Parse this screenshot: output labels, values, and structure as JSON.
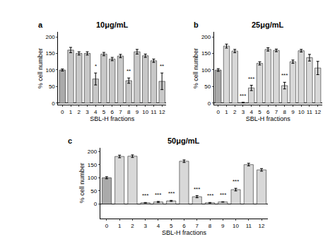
{
  "chart_data": [
    {
      "type": "bar",
      "title": "10μg/mL",
      "panel_label": "a",
      "xlabel": "SBL-H fractions",
      "ylabel": "% cell number",
      "categories": [
        "0",
        "1",
        "2",
        "3",
        "4",
        "5",
        "6",
        "7",
        "8",
        "9",
        "10",
        "11",
        "12"
      ],
      "values": [
        100,
        160,
        150,
        150,
        73,
        148,
        133,
        142,
        68,
        155,
        143,
        128,
        66
      ],
      "errors": [
        3,
        8,
        5,
        5,
        18,
        5,
        5,
        5,
        8,
        7,
        5,
        5,
        25
      ],
      "annotations": [
        {
          "category": "4",
          "text": "*"
        },
        {
          "category": "8",
          "text": "**"
        },
        {
          "category": "12",
          "text": "**"
        }
      ],
      "colors": [
        "#aaaaaa",
        "#c8c8c8",
        "#c8c8c8",
        "#c8c8c8",
        "#c8c8c8",
        "#c8c8c8",
        "#c8c8c8",
        "#c8c8c8",
        "#c8c8c8",
        "#c8c8c8",
        "#c8c8c8",
        "#c8c8c8",
        "#c8c8c8"
      ],
      "ylim": [
        -5,
        215
      ],
      "yticks": [
        0,
        50,
        100,
        150,
        200
      ],
      "grid": false
    },
    {
      "type": "bar",
      "title": "25μg/mL",
      "panel_label": "b",
      "xlabel": "SBL-H fractions",
      "ylabel": "% cell number",
      "categories": [
        "0",
        "1",
        "2",
        "3",
        "4",
        "5",
        "6",
        "7",
        "8",
        "9",
        "10",
        "11",
        "12"
      ],
      "values": [
        100,
        172,
        157,
        2,
        46,
        120,
        162,
        159,
        53,
        125,
        158,
        137,
        106
      ],
      "errors": [
        4,
        6,
        5,
        1,
        8,
        5,
        5,
        4,
        10,
        5,
        4,
        10,
        20
      ],
      "annotations": [
        {
          "category": "3",
          "text": "***"
        },
        {
          "category": "4",
          "text": "***"
        },
        {
          "category": "8",
          "text": "***"
        }
      ],
      "colors": [
        "#aaaaaa",
        "#d8d8d8",
        "#d8d8d8",
        "#d8d8d8",
        "#d8d8d8",
        "#d8d8d8",
        "#d8d8d8",
        "#d8d8d8",
        "#d8d8d8",
        "#d8d8d8",
        "#d8d8d8",
        "#d8d8d8",
        "#d8d8d8"
      ],
      "ylim": [
        -5,
        215
      ],
      "yticks": [
        0,
        50,
        100,
        150,
        200
      ],
      "grid": false
    },
    {
      "type": "bar",
      "title": "50μg/mL",
      "panel_label": "c",
      "xlabel": "SBL-H fractions",
      "ylabel": "% cell number",
      "categories": [
        "0",
        "1",
        "2",
        "3",
        "4",
        "5",
        "6",
        "7",
        "8",
        "9",
        "10",
        "11",
        "12"
      ],
      "values": [
        100,
        181,
        182,
        5,
        8,
        12,
        163,
        28,
        5,
        8,
        55,
        150,
        130
      ],
      "errors": [
        4,
        5,
        5,
        1,
        2,
        2,
        5,
        4,
        1,
        1,
        5,
        5,
        5
      ],
      "annotations": [
        {
          "category": "3",
          "text": "***"
        },
        {
          "category": "4",
          "text": "***"
        },
        {
          "category": "5",
          "text": "***"
        },
        {
          "category": "7",
          "text": "***"
        },
        {
          "category": "8",
          "text": "***"
        },
        {
          "category": "9",
          "text": "***"
        },
        {
          "category": "10",
          "text": "***"
        }
      ],
      "colors": [
        "#aaaaaa",
        "#d8d8d8",
        "#d8d8d8",
        "#d8d8d8",
        "#d8d8d8",
        "#d8d8d8",
        "#d8d8d8",
        "#d8d8d8",
        "#d8d8d8",
        "#d8d8d8",
        "#d8d8d8",
        "#d8d8d8",
        "#d8d8d8"
      ],
      "ylim": [
        -55,
        215
      ],
      "yticks": [
        0,
        50,
        100,
        150,
        200
      ],
      "grid": false
    }
  ]
}
